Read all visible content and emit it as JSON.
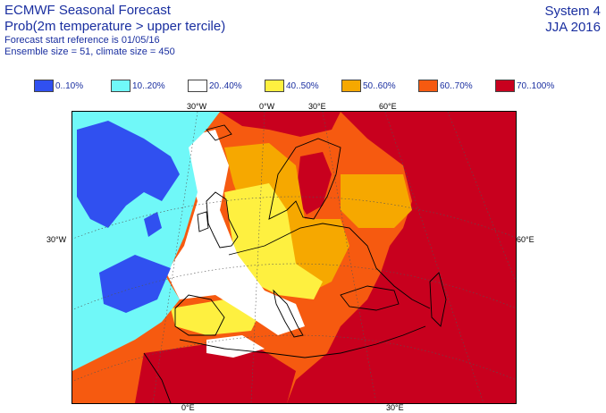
{
  "header": {
    "title": "ECMWF Seasonal Forecast",
    "subtitle": "Prob(2m temperature > upper tercile)",
    "reference": "Forecast start reference is 01/05/16",
    "ensemble": "Ensemble size = 51, climate size = 450",
    "system": "System 4",
    "season": "JJA 2016"
  },
  "legend": [
    {
      "label": "0..10%",
      "color": "#3050f0"
    },
    {
      "label": "10..20%",
      "color": "#70f8f8"
    },
    {
      "label": "20..40%",
      "color": "#ffffff"
    },
    {
      "label": "40..50%",
      "color": "#fef040"
    },
    {
      "label": "50..60%",
      "color": "#f6a800"
    },
    {
      "label": "60..70%",
      "color": "#f65a10"
    },
    {
      "label": "70..100%",
      "color": "#c8001e"
    }
  ],
  "map_labels": {
    "top_30w": "30°W",
    "top_0w": "0°W",
    "top_30e": "30°E",
    "top_60e": "60°E",
    "left_30w": "30°W",
    "right_60e": "60°E",
    "bottom_0e": "0°E",
    "bottom_30e": "30°E"
  }
}
